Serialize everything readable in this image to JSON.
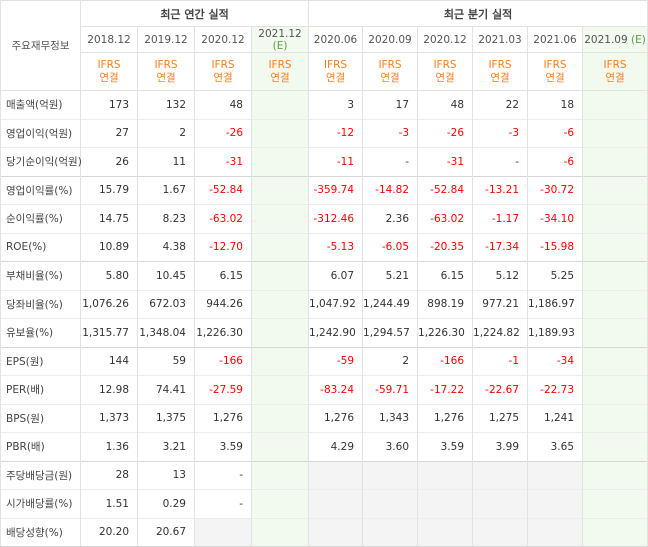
{
  "header": {
    "row_label": "주요재무정보",
    "annual_title": "최근 연간 실적",
    "quarter_title": "최근 분기 실적",
    "ifrs_line1": "IFRS",
    "ifrs_line2": "연결",
    "estimate_mark": "(E)"
  },
  "annual_periods": [
    "2018.12",
    "2019.12",
    "2020.12",
    "2021.12"
  ],
  "quarter_periods": [
    "2020.06",
    "2020.09",
    "2020.12",
    "2021.03",
    "2021.06",
    "2021.09"
  ],
  "rows": [
    {
      "label": "매출액(억원)",
      "annual": [
        "173",
        "132",
        "48",
        ""
      ],
      "quarter": [
        "3",
        "17",
        "48",
        "22",
        "18",
        ""
      ]
    },
    {
      "label": "영업이익(억원)",
      "annual": [
        "27",
        "2",
        "-26",
        ""
      ],
      "quarter": [
        "-12",
        "-3",
        "-26",
        "-3",
        "-6",
        ""
      ]
    },
    {
      "label": "당기순이익(억원)",
      "annual": [
        "26",
        "11",
        "-31",
        ""
      ],
      "quarter": [
        "-11",
        "-",
        "-31",
        "-",
        "-6",
        ""
      ]
    },
    {
      "label": "영업이익률(%)",
      "annual": [
        "15.79",
        "1.67",
        "-52.84",
        ""
      ],
      "quarter": [
        "-359.74",
        "-14.82",
        "-52.84",
        "-13.21",
        "-30.72",
        ""
      ]
    },
    {
      "label": "순이익률(%)",
      "annual": [
        "14.75",
        "8.23",
        "-63.02",
        ""
      ],
      "quarter": [
        "-312.46",
        "2.36",
        "-63.02",
        "-1.17",
        "-34.10",
        ""
      ]
    },
    {
      "label": "ROE(%)",
      "annual": [
        "10.89",
        "4.38",
        "-12.70",
        ""
      ],
      "quarter": [
        "-5.13",
        "-6.05",
        "-20.35",
        "-17.34",
        "-15.98",
        ""
      ]
    },
    {
      "label": "부채비율(%)",
      "annual": [
        "5.80",
        "10.45",
        "6.15",
        ""
      ],
      "quarter": [
        "6.07",
        "5.21",
        "6.15",
        "5.12",
        "5.25",
        ""
      ]
    },
    {
      "label": "당좌비율(%)",
      "annual": [
        "1,076.26",
        "672.03",
        "944.26",
        ""
      ],
      "quarter": [
        "1,047.92",
        "1,244.49",
        "898.19",
        "977.21",
        "1,186.97",
        ""
      ]
    },
    {
      "label": "유보율(%)",
      "annual": [
        "1,315.77",
        "1,348.04",
        "1,226.30",
        ""
      ],
      "quarter": [
        "1,242.90",
        "1,294.57",
        "1,226.30",
        "1,224.82",
        "1,189.93",
        ""
      ]
    },
    {
      "label": "EPS(원)",
      "annual": [
        "144",
        "59",
        "-166",
        ""
      ],
      "quarter": [
        "-59",
        "2",
        "-166",
        "-1",
        "-34",
        ""
      ]
    },
    {
      "label": "PER(배)",
      "annual": [
        "12.98",
        "74.41",
        "-27.59",
        ""
      ],
      "quarter": [
        "-83.24",
        "-59.71",
        "-17.22",
        "-22.67",
        "-22.73",
        ""
      ]
    },
    {
      "label": "BPS(원)",
      "annual": [
        "1,373",
        "1,375",
        "1,276",
        ""
      ],
      "quarter": [
        "1,276",
        "1,343",
        "1,276",
        "1,275",
        "1,241",
        ""
      ]
    },
    {
      "label": "PBR(배)",
      "annual": [
        "1.36",
        "3.21",
        "3.59",
        ""
      ],
      "quarter": [
        "4.29",
        "3.60",
        "3.59",
        "3.99",
        "3.65",
        ""
      ]
    },
    {
      "label": "주당배당금(원)",
      "annual": [
        "28",
        "13",
        "-",
        ""
      ],
      "quarter": [
        "",
        "",
        "",
        "",
        "",
        ""
      ]
    },
    {
      "label": "시가배당률(%)",
      "annual": [
        "1.51",
        "0.29",
        "-",
        ""
      ],
      "quarter": [
        "",
        "",
        "",
        "",
        "",
        ""
      ]
    },
    {
      "label": "배당성향(%)",
      "annual": [
        "20.20",
        "20.67",
        "",
        ""
      ],
      "quarter": [
        "",
        "",
        "",
        "",
        "",
        ""
      ]
    }
  ],
  "colors": {
    "negative": "#ff0000",
    "ifrs": "#ff7d1a",
    "estimate_bg": "#f2f9ee",
    "estimate_mark": "#5aa04a"
  }
}
